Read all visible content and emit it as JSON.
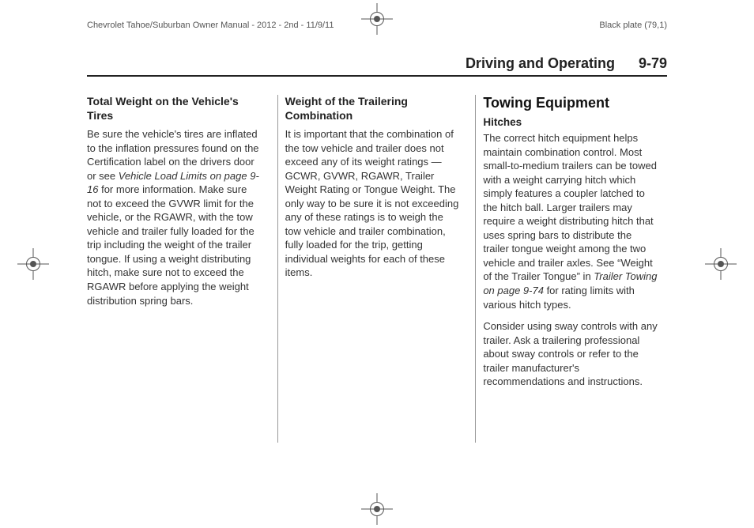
{
  "header": {
    "doc_title": "Chevrolet Tahoe/Suburban Owner Manual - 2012 - 2nd - 11/9/11",
    "plate": "Black plate (79,1)"
  },
  "running_head": {
    "section": "Driving and Operating",
    "page": "9-79"
  },
  "col1": {
    "h3": "Total Weight on the Vehicle's Tires",
    "p1a": "Be sure the vehicle's tires are inflated to the inflation pressures found on the Certification label on the drivers door or see ",
    "p1_ref": "Vehicle Load Limits on page 9-16",
    "p1b": " for more information. Make sure not to exceed the GVWR limit for the vehicle, or the RGAWR, with the tow vehicle and trailer fully loaded for the trip including the weight of the trailer tongue. If using a weight distributing hitch, make sure not to exceed the RGAWR before applying the weight distribution spring bars."
  },
  "col2": {
    "h3": "Weight of the Trailering Combination",
    "p1": "It is important that the combination of the tow vehicle and trailer does not exceed any of its weight ratings — GCWR, GVWR, RGAWR, Trailer Weight Rating or Tongue Weight. The only way to be sure it is not exceeding any of these ratings is to weigh the tow vehicle and trailer combination, fully loaded for the trip, getting individual weights for each of these items."
  },
  "col3": {
    "h2": "Towing Equipment",
    "h4": "Hitches",
    "p1a": "The correct hitch equipment helps maintain combination control. Most small-to-medium trailers can be towed with a weight carrying hitch which simply features a coupler latched to the hitch ball. Larger trailers may require a weight distributing hitch that uses spring bars to distribute the trailer tongue weight among the two vehicle and trailer axles. See “Weight of the Trailer Tongue” in ",
    "p1_ref": "Trailer Towing on page 9-74",
    "p1b": " for rating limits with various hitch types.",
    "p2": "Consider using sway controls with any trailer. Ask a trailering professional about sway controls or refer to the trailer manufacturer's recommendations and instructions."
  }
}
